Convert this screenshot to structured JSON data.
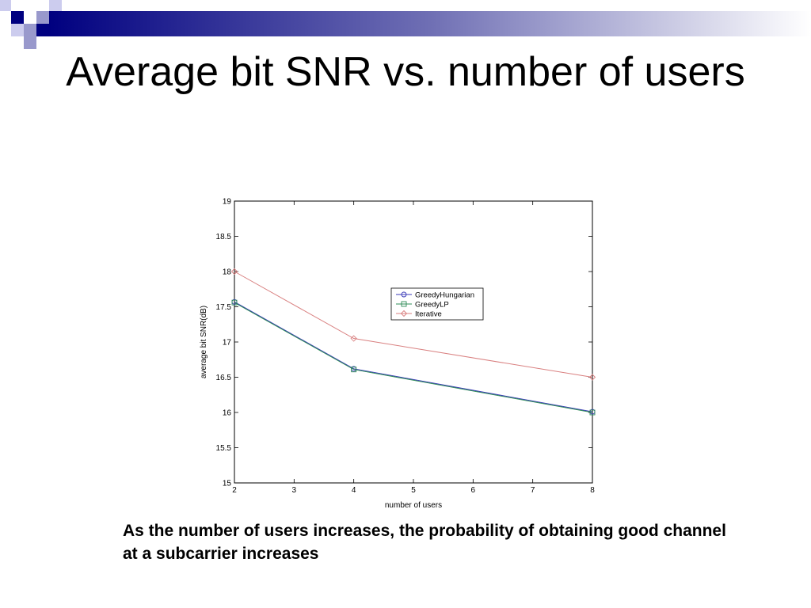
{
  "slide": {
    "title": "Average bit SNR vs. number of users",
    "caption": "As the number of users increases, the probability of obtaining good channel at a subcarrier increases"
  },
  "colors": {
    "accent_dark": "#000080",
    "accent_light": "#9999cc",
    "series": {
      "GreedyHungarian": "#3b3bb8",
      "GreedyLP": "#2e8b57",
      "Iterative": "#d98080"
    }
  },
  "chart_data": {
    "type": "line",
    "title": "",
    "xlabel": "number of users",
    "ylabel": "average bit SNR(dB)",
    "x": [
      2,
      4,
      8
    ],
    "xlim": [
      2,
      8
    ],
    "ylim": [
      15,
      19
    ],
    "xticks": [
      2,
      3,
      4,
      5,
      6,
      7,
      8
    ],
    "yticks": [
      15,
      15.5,
      16,
      16.5,
      17,
      17.5,
      18,
      18.5,
      19
    ],
    "grid": false,
    "legend_position": "center",
    "series": [
      {
        "name": "GreedyHungarian",
        "values": [
          17.57,
          16.62,
          16.01
        ],
        "marker": "circle",
        "color": "#3b3bb8"
      },
      {
        "name": "GreedyLP",
        "values": [
          17.56,
          16.61,
          16.0
        ],
        "marker": "square",
        "color": "#2e8b57"
      },
      {
        "name": "Iterative",
        "values": [
          18.0,
          17.05,
          16.5
        ],
        "marker": "diamond",
        "color": "#d98080"
      }
    ]
  }
}
